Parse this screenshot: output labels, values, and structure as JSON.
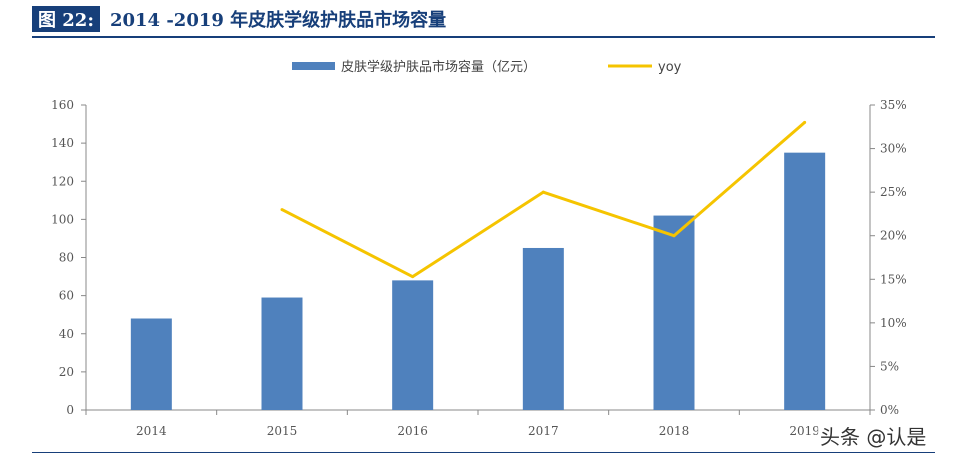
{
  "header": {
    "figure_label": "图 22:",
    "title": "2014 -2019 年皮肤学级护肤品市场容量"
  },
  "watermark": "头条 @认是",
  "colors": {
    "bar": "#4f81bd",
    "line": "#f5c400",
    "title": "#173f7a"
  },
  "chart_data": {
    "type": "bar",
    "categories": [
      "2014",
      "2015",
      "2016",
      "2017",
      "2018",
      "2019"
    ],
    "series": [
      {
        "name": "皮肤学级护肤品市场容量（亿元）",
        "type": "bar",
        "axis": "left",
        "values": [
          48,
          59,
          68,
          85,
          102,
          135
        ]
      },
      {
        "name": "yoy",
        "type": "line",
        "axis": "right",
        "values": [
          null,
          0.23,
          0.153,
          0.25,
          0.2,
          0.33
        ]
      }
    ],
    "y_left": {
      "min": 0,
      "max": 160,
      "ticks": [
        "0",
        "20",
        "40",
        "60",
        "80",
        "100",
        "120",
        "140",
        "160"
      ]
    },
    "y_right": {
      "min": 0,
      "max": 0.35,
      "ticks": [
        "0%",
        "5%",
        "10%",
        "15%",
        "20%",
        "25%",
        "30%",
        "35%"
      ]
    },
    "legend": "top-center",
    "grid": false
  }
}
